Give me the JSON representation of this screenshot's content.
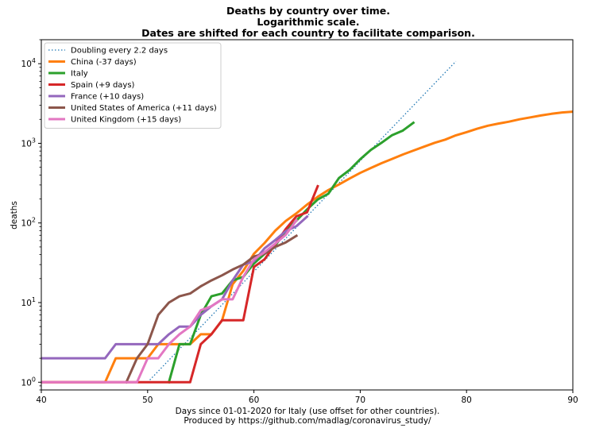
{
  "chart_data": {
    "type": "line",
    "title_lines": [
      "Deaths by country over time.",
      "Logarithmic scale.",
      "Dates are shifted for each country to facilitate comparison."
    ],
    "xlabel_lines": [
      "Days since 01-01-2020 for Italy (use offset for other countries).",
      "Produced by https://github.com/madlag/coronavirus_study/"
    ],
    "ylabel": "deaths",
    "y_scale": "log",
    "xlim": [
      40,
      90
    ],
    "ylim": [
      0.8,
      20000
    ],
    "x_ticks": [
      {
        "value": 40,
        "label": "40"
      },
      {
        "value": 50,
        "label": "50"
      },
      {
        "value": 60,
        "label": "60"
      },
      {
        "value": 70,
        "label": "70"
      },
      {
        "value": 80,
        "label": "80"
      },
      {
        "value": 90,
        "label": "90"
      }
    ],
    "y_ticks": [
      {
        "value": 1,
        "base": "10",
        "exp": "0"
      },
      {
        "value": 10,
        "base": "10",
        "exp": "1"
      },
      {
        "value": 100,
        "base": "10",
        "exp": "2"
      },
      {
        "value": 1000,
        "base": "10",
        "exp": "3"
      },
      {
        "value": 10000,
        "base": "10",
        "exp": "4"
      }
    ],
    "legend_position": "upper-left",
    "grid": false,
    "series": [
      {
        "name": "Doubling every 2.2 days",
        "color": "#1f77b4",
        "style": "dotted",
        "x": [
          50,
          79
        ],
        "y": [
          1,
          10715
        ]
      },
      {
        "name": "China (-37 days)",
        "color": "#ff7f0e",
        "style": "solid",
        "x": [
          40,
          46,
          47,
          48,
          49,
          50,
          51,
          52,
          53,
          54,
          55,
          56,
          57,
          58,
          59,
          60,
          61,
          62,
          63,
          64,
          65,
          66,
          67,
          68,
          69,
          70,
          71,
          72,
          73,
          74,
          75,
          76,
          77,
          78,
          79,
          80,
          81,
          82,
          83,
          84,
          85,
          86,
          87,
          88,
          89,
          90
        ],
        "y": [
          1,
          1,
          2,
          2,
          2,
          2,
          3,
          3,
          3,
          3,
          4,
          4,
          6,
          17,
          25,
          41,
          56,
          80,
          106,
          132,
          170,
          213,
          259,
          304,
          361,
          425,
          490,
          563,
          637,
          722,
          811,
          908,
          1016,
          1113,
          1259,
          1380,
          1523,
          1665,
          1770,
          1868,
          2004,
          2118,
          2236,
          2345,
          2442,
          2500
        ]
      },
      {
        "name": "Italy",
        "color": "#2ca02c",
        "style": "solid",
        "x": [
          52,
          53,
          54,
          55,
          56,
          57,
          58,
          59,
          60,
          61,
          62,
          63,
          64,
          65,
          66,
          67,
          68,
          69,
          70,
          71,
          72,
          73,
          74,
          75
        ],
        "y": [
          1,
          3,
          3,
          7,
          12,
          13,
          19,
          21,
          31,
          41,
          52,
          79,
          107,
          148,
          197,
          233,
          366,
          463,
          631,
          827,
          1016,
          1266,
          1441,
          1809
        ]
      },
      {
        "name": "Spain (+9 days)",
        "color": "#d62728",
        "style": "solid",
        "x": [
          40,
          54,
          55,
          56,
          57,
          58,
          59,
          60,
          61,
          62,
          63,
          64,
          65,
          66
        ],
        "y": [
          1,
          1,
          3,
          4,
          6,
          6,
          6,
          28,
          35,
          54,
          84,
          121,
          136,
          290
        ]
      },
      {
        "name": "France (+10 days)",
        "color": "#9467bd",
        "style": "solid",
        "x": [
          40,
          46,
          47,
          48,
          49,
          50,
          51,
          52,
          53,
          54,
          55,
          56,
          57,
          58,
          59,
          60,
          61,
          62,
          63,
          64,
          65
        ],
        "y": [
          2,
          2,
          3,
          3,
          3,
          3,
          3,
          4,
          5,
          5,
          7,
          9,
          11,
          19,
          30,
          33,
          48,
          61,
          79,
          91,
          120
        ]
      },
      {
        "name": "United States of America (+11 days)",
        "color": "#8c564b",
        "style": "solid",
        "x": [
          48,
          49,
          50,
          51,
          52,
          53,
          54,
          55,
          56,
          57,
          58,
          59,
          60,
          61,
          62,
          63,
          64
        ],
        "y": [
          1,
          2,
          3,
          7,
          10,
          12,
          13,
          16,
          19,
          22,
          26,
          30,
          38,
          41,
          50,
          57,
          69
        ]
      },
      {
        "name": "United Kingdom (+15 days)",
        "color": "#e377c2",
        "style": "solid",
        "x": [
          40,
          49,
          50,
          51,
          52,
          53,
          54,
          55,
          56,
          57,
          58,
          59,
          60,
          61,
          62,
          63,
          64
        ],
        "y": [
          1,
          1,
          2,
          2,
          3,
          4,
          5,
          8,
          9,
          11,
          11,
          21,
          35,
          43,
          55,
          71,
          108
        ]
      }
    ]
  }
}
